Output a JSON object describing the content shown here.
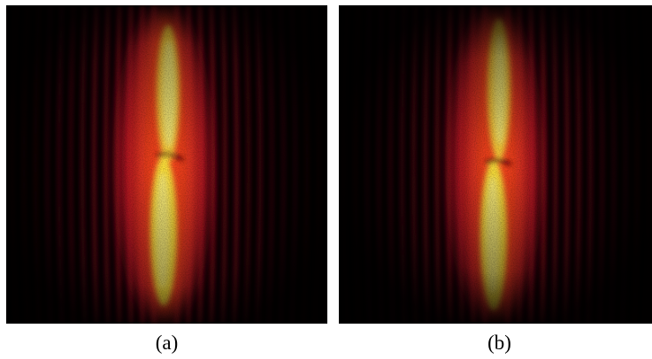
{
  "figure": {
    "panels": [
      {
        "label": "(a)"
      },
      {
        "label": "(b)"
      }
    ],
    "colors": {
      "background": "#000000",
      "fringe": "#d0102a",
      "core": "#ffe23a",
      "halo": "#ff5a1a"
    }
  }
}
